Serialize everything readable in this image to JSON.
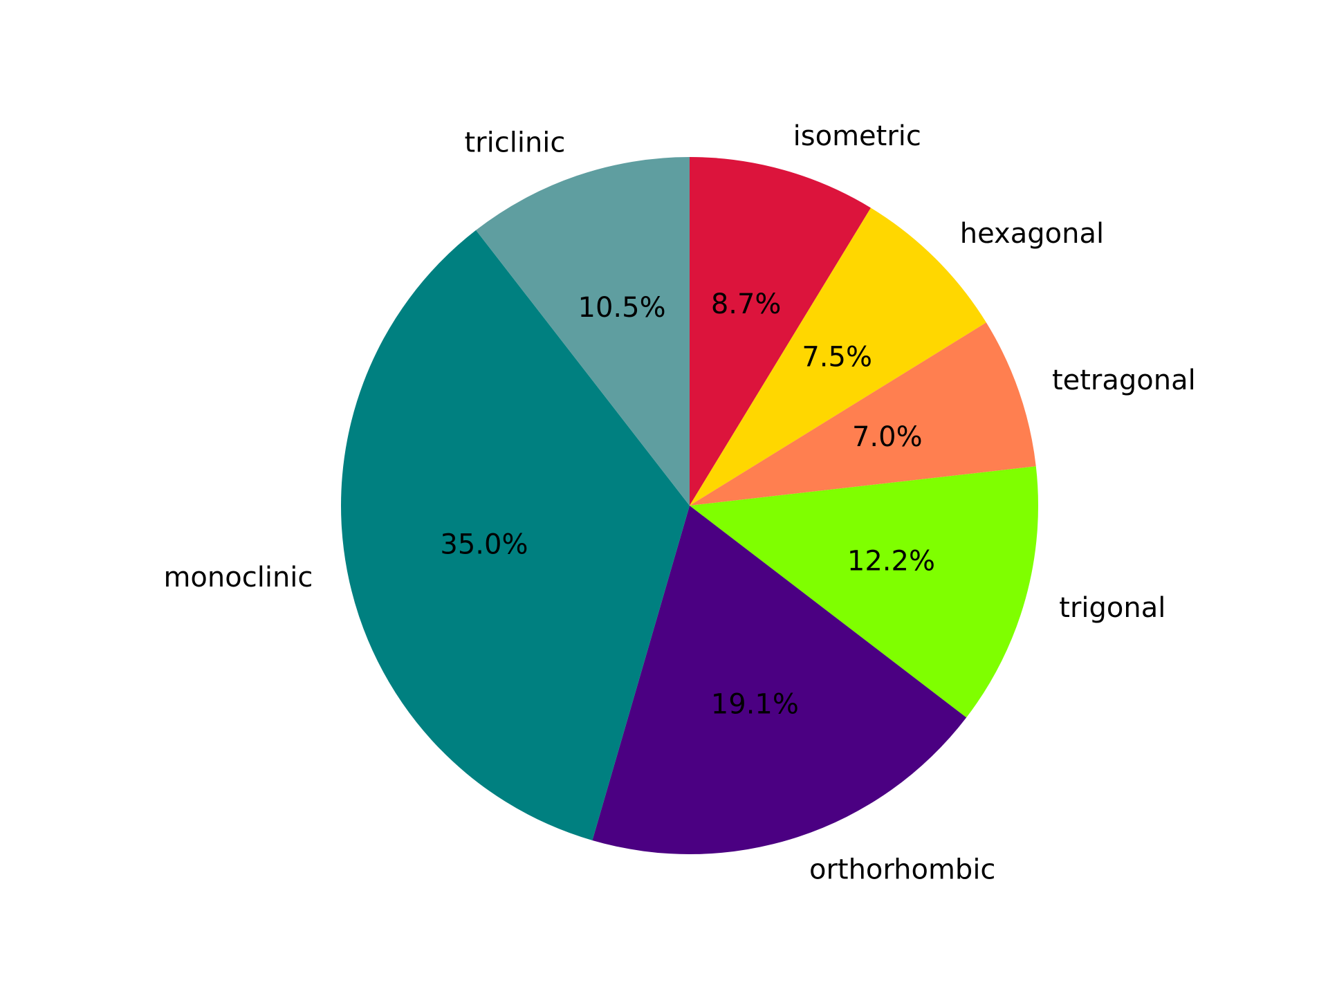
{
  "chart_data": {
    "type": "pie",
    "title": "",
    "start_angle_deg": 90,
    "direction": "clockwise",
    "slices": [
      {
        "label": "isometric",
        "value": 8.7,
        "pct_text": "8.7%",
        "color": "#DC143C"
      },
      {
        "label": "hexagonal",
        "value": 7.5,
        "pct_text": "7.5%",
        "color": "#FFD700"
      },
      {
        "label": "tetragonal",
        "value": 7.0,
        "pct_text": "7.0%",
        "color": "#FF7F50"
      },
      {
        "label": "trigonal",
        "value": 12.2,
        "pct_text": "12.2%",
        "color": "#7FFF00"
      },
      {
        "label": "orthorhombic",
        "value": 19.1,
        "pct_text": "19.1%",
        "color": "#4B0082"
      },
      {
        "label": "monoclinic",
        "value": 35.0,
        "pct_text": "35.0%",
        "color": "#008080"
      },
      {
        "label": "triclinic",
        "value": 10.5,
        "pct_text": "10.5%",
        "color": "#5F9EA0"
      }
    ]
  }
}
